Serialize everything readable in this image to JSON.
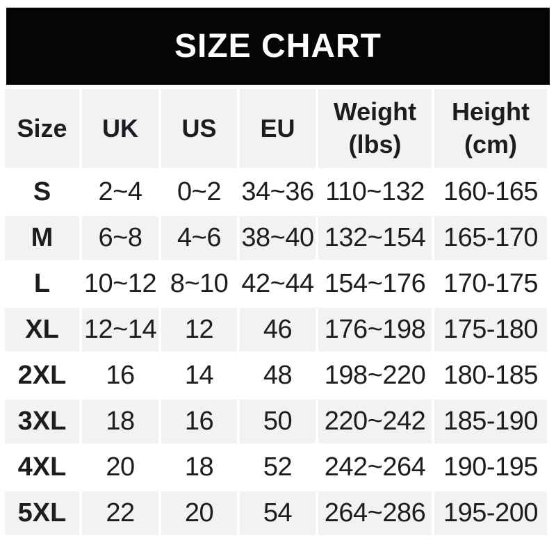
{
  "banner": {
    "title": "SIZE CHART"
  },
  "headers": [
    {
      "line1": "Size",
      "line2": ""
    },
    {
      "line1": "UK",
      "line2": ""
    },
    {
      "line1": "US",
      "line2": ""
    },
    {
      "line1": "EU",
      "line2": ""
    },
    {
      "line1": "Weight",
      "line2": "(lbs)"
    },
    {
      "line1": "Height",
      "line2": "(cm)"
    }
  ],
  "chart_data": {
    "type": "table",
    "title": "SIZE CHART",
    "columns": [
      "Size",
      "UK",
      "US",
      "EU",
      "Weight (lbs)",
      "Height (cm)"
    ],
    "rows": [
      [
        "S",
        "2~4",
        "0~2",
        "34~36",
        "110~132",
        "160-165"
      ],
      [
        "M",
        "6~8",
        "4~6",
        "38~40",
        "132~154",
        "165-170"
      ],
      [
        "L",
        "10~12",
        "8~10",
        "42~44",
        "154~176",
        "170-175"
      ],
      [
        "XL",
        "12~14",
        "12",
        "46",
        "176~198",
        "175-180"
      ],
      [
        "2XL",
        "16",
        "14",
        "48",
        "198~220",
        "180-185"
      ],
      [
        "3XL",
        "18",
        "16",
        "50",
        "220~242",
        "185-190"
      ],
      [
        "4XL",
        "20",
        "18",
        "52",
        "242~264",
        "190-195"
      ],
      [
        "5XL",
        "22",
        "20",
        "54",
        "264~286",
        "195-200"
      ]
    ],
    "layout": {
      "alternating_row_color": "#f2f2f2",
      "row_gap_color": "#ffffff",
      "grid": "off"
    }
  },
  "colors": {
    "banner_bg": "#050505",
    "banner_text": "#ffffff",
    "cell_bg": "#f2f2f2",
    "text": "#1c1d20",
    "page_bg": "#ffffff"
  }
}
